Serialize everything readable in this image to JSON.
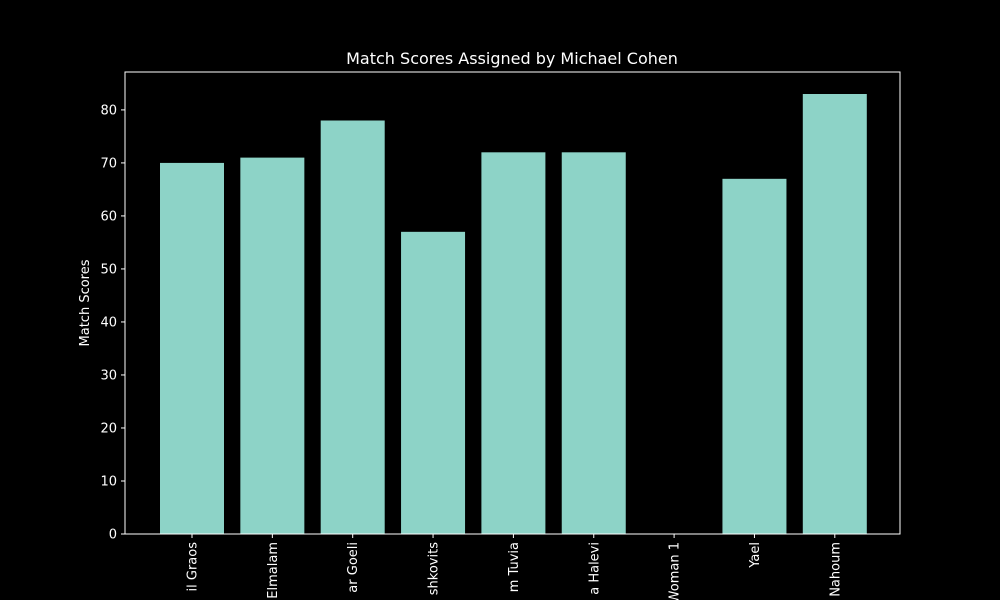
{
  "chart_data": {
    "type": "bar",
    "title": "Match Scores Assigned by Michael Cohen",
    "xlabel": "",
    "ylabel": "Match Scores",
    "categories": [
      "il Graos",
      "Elmalam",
      "ar Goeli",
      "shkovits",
      "m Tuvia",
      "a Halevi",
      "Woman 1",
      "Yael",
      "Nahoum"
    ],
    "values": [
      70,
      71,
      78,
      57,
      72,
      72,
      0,
      67,
      83
    ],
    "ylim": [
      0,
      87.15
    ],
    "yticks": [
      0,
      10,
      20,
      30,
      40,
      50,
      60,
      70,
      80
    ],
    "grid": false,
    "bar_color": "#8dd3c7",
    "background": "#000000",
    "axis_color": "#ffffff"
  }
}
